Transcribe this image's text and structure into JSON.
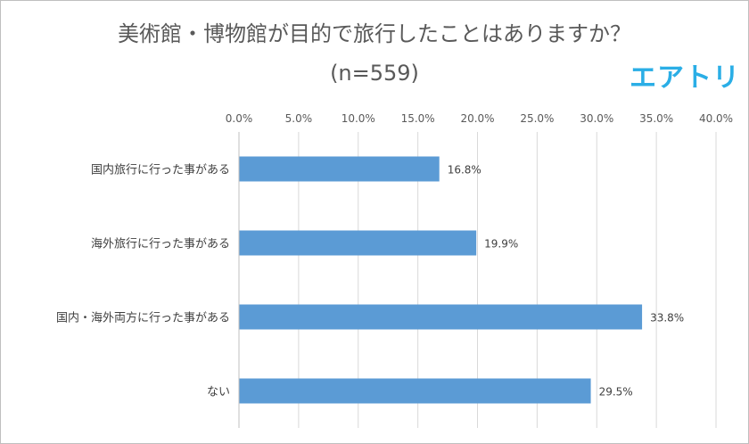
{
  "brand": {
    "text": "エアトリ",
    "color": "#2aaee6"
  },
  "chart_data": {
    "type": "bar",
    "orientation": "horizontal",
    "title": "美術館・博物館が目的で旅行したことはありますか？",
    "subtitle": "(n=559)",
    "categories": [
      "国内旅行に行った事がある",
      "海外旅行に行った事がある",
      "国内・海外両方に行った事がある",
      "ない"
    ],
    "values": [
      16.8,
      19.9,
      33.8,
      29.5
    ],
    "data_labels": [
      "16.8%",
      "19.9%",
      "33.8%",
      "29.5%"
    ],
    "xlim": [
      0,
      40
    ],
    "ticks": [
      "0.0%",
      "5.0%",
      "10.0%",
      "15.0%",
      "20.0%",
      "25.0%",
      "30.0%",
      "35.0%",
      "40.0%"
    ],
    "tick_values": [
      0,
      5,
      10,
      15,
      20,
      25,
      30,
      35,
      40
    ],
    "axis_position": "top",
    "grid": true,
    "bar_color": "#5b9bd5",
    "grid_color": "#d9d9d9"
  }
}
